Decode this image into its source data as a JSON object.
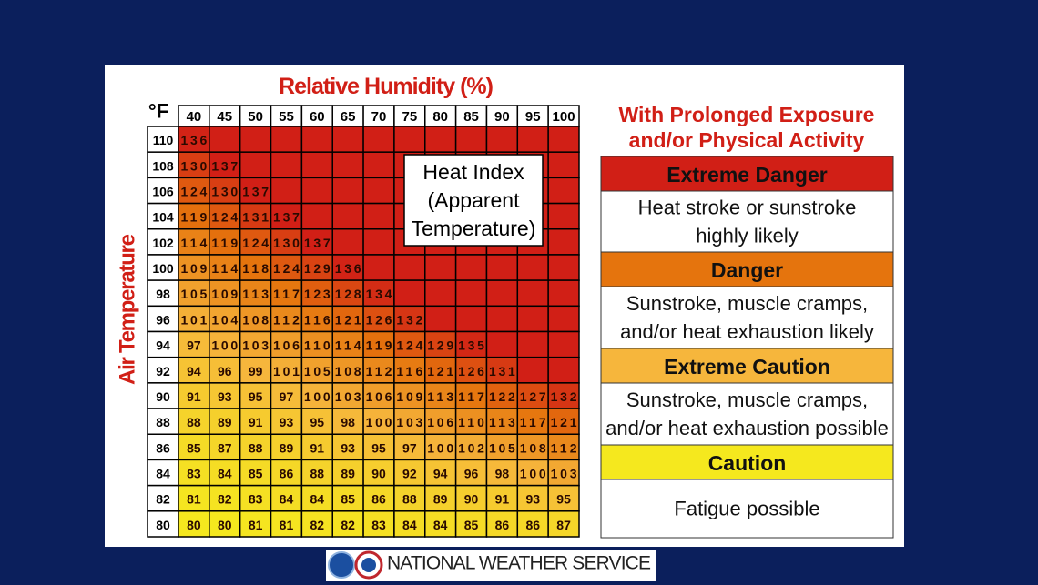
{
  "table": {
    "title": "Relative Humidity (%)",
    "unit": "°F",
    "row_label": "Air Temperature",
    "columns": [
      40,
      45,
      50,
      55,
      60,
      65,
      70,
      75,
      80,
      85,
      90,
      95,
      100
    ],
    "rows": [
      {
        "temp": 110,
        "values": [
          136
        ]
      },
      {
        "temp": 108,
        "values": [
          130,
          137
        ]
      },
      {
        "temp": 106,
        "values": [
          124,
          130,
          137
        ]
      },
      {
        "temp": 104,
        "values": [
          119,
          124,
          131,
          137
        ]
      },
      {
        "temp": 102,
        "values": [
          114,
          119,
          124,
          130,
          137
        ]
      },
      {
        "temp": 100,
        "values": [
          109,
          114,
          118,
          124,
          129,
          136
        ]
      },
      {
        "temp": 98,
        "values": [
          105,
          109,
          113,
          117,
          123,
          128,
          134
        ]
      },
      {
        "temp": 96,
        "values": [
          101,
          104,
          108,
          112,
          116,
          121,
          126,
          132
        ]
      },
      {
        "temp": 94,
        "values": [
          97,
          100,
          103,
          106,
          110,
          114,
          119,
          124,
          129,
          135
        ]
      },
      {
        "temp": 92,
        "values": [
          94,
          96,
          99,
          101,
          105,
          108,
          112,
          116,
          121,
          126,
          131
        ]
      },
      {
        "temp": 90,
        "values": [
          91,
          93,
          95,
          97,
          100,
          103,
          106,
          109,
          113,
          117,
          122,
          127,
          132
        ]
      },
      {
        "temp": 88,
        "values": [
          88,
          89,
          91,
          93,
          95,
          98,
          100,
          103,
          106,
          110,
          113,
          117,
          121
        ]
      },
      {
        "temp": 86,
        "values": [
          85,
          87,
          88,
          89,
          91,
          93,
          95,
          97,
          100,
          102,
          105,
          108,
          112
        ]
      },
      {
        "temp": 84,
        "values": [
          83,
          84,
          85,
          86,
          88,
          89,
          90,
          92,
          94,
          96,
          98,
          100,
          103
        ]
      },
      {
        "temp": 82,
        "values": [
          81,
          82,
          83,
          84,
          84,
          85,
          86,
          88,
          89,
          90,
          91,
          93,
          95
        ]
      },
      {
        "temp": 80,
        "values": [
          80,
          80,
          81,
          81,
          82,
          82,
          83,
          84,
          84,
          85,
          86,
          86,
          87
        ]
      }
    ],
    "callout": [
      "Heat Index",
      "(Apparent",
      "Temperature)"
    ]
  },
  "legend": {
    "heading": [
      "With Prolonged Exposure",
      "and/or Physical Activity"
    ],
    "levels": [
      {
        "name": "Extreme Danger",
        "color": "#d11f16",
        "description": [
          "Heat stroke or sunstroke",
          "highly likely"
        ]
      },
      {
        "name": "Danger",
        "color": "#e5740d",
        "description": [
          "Sunstroke, muscle cramps,",
          "and/or heat exhaustion likely"
        ]
      },
      {
        "name": "Extreme Caution",
        "color": "#f6b63c",
        "description": [
          "Sunstroke, muscle cramps,",
          "and/or heat exhaustion possible"
        ]
      },
      {
        "name": "Caution",
        "color": "#f5e81e",
        "description": [
          "Fatigue possible"
        ]
      }
    ]
  },
  "footer": {
    "text": "NATIONAL WEATHER SERVICE"
  }
}
